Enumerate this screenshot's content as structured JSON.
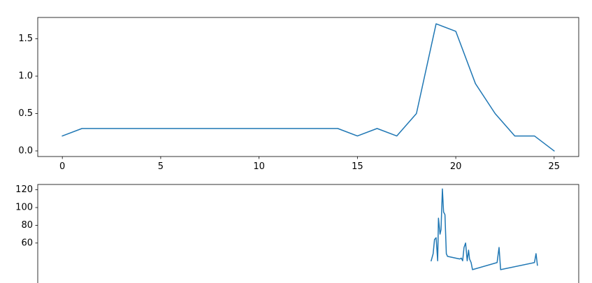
{
  "chart_data": [
    {
      "type": "line",
      "title": "",
      "xlabel": "",
      "ylabel": "",
      "xlim": [
        -1.25,
        26.25
      ],
      "ylim": [
        -0.075,
        1.785
      ],
      "xticks": [
        0,
        5,
        10,
        15,
        20,
        25
      ],
      "xtick_labels": [
        "0",
        "5",
        "10",
        "15",
        "20",
        "25"
      ],
      "yticks": [
        0.0,
        0.5,
        1.0,
        1.5
      ],
      "ytick_labels": [
        "0.0",
        "0.5",
        "1.0",
        "1.5"
      ],
      "grid": false,
      "legend": "none",
      "series": [
        {
          "color": "#1f77b4",
          "x": [
            0,
            1,
            2,
            3,
            4,
            5,
            6,
            7,
            8,
            9,
            10,
            11,
            12,
            13,
            14,
            15,
            16,
            17,
            18,
            19,
            20,
            21,
            22,
            23,
            24,
            25
          ],
          "y": [
            0.2,
            0.3,
            0.3,
            0.3,
            0.3,
            0.3,
            0.3,
            0.3,
            0.3,
            0.3,
            0.3,
            0.3,
            0.3,
            0.3,
            0.3,
            0.2,
            0.3,
            0.2,
            0.5,
            1.7,
            1.6,
            0.9,
            0.5,
            0.2,
            0.2,
            0.0
          ]
        }
      ]
    },
    {
      "type": "line",
      "title": "",
      "xlabel": "",
      "ylabel": "",
      "xlim": [
        -1.25,
        26.25
      ],
      "ylim": [
        0,
        126
      ],
      "yticks": [
        60,
        80,
        100,
        120
      ],
      "ytick_labels": [
        "60",
        "80",
        "100",
        "120"
      ],
      "grid": false,
      "legend": "none",
      "series": [
        {
          "color": "#1f77b4",
          "x": [
            18.75,
            18.85,
            18.92,
            19.0,
            19.08,
            19.12,
            19.2,
            19.25,
            19.32,
            19.38,
            19.45,
            19.52,
            19.58,
            20.2,
            20.28,
            20.35,
            20.42,
            20.5,
            20.58,
            20.65,
            20.7,
            20.78,
            20.85,
            22.1,
            22.2,
            22.28,
            24.0,
            24.08,
            24.15
          ],
          "y": [
            40,
            48,
            64,
            66,
            40,
            88,
            70,
            75,
            121,
            95,
            92,
            48,
            45,
            42,
            43,
            40,
            55,
            60,
            40,
            52,
            42,
            38,
            30,
            38,
            55,
            30,
            38,
            48,
            35
          ]
        }
      ]
    }
  ]
}
